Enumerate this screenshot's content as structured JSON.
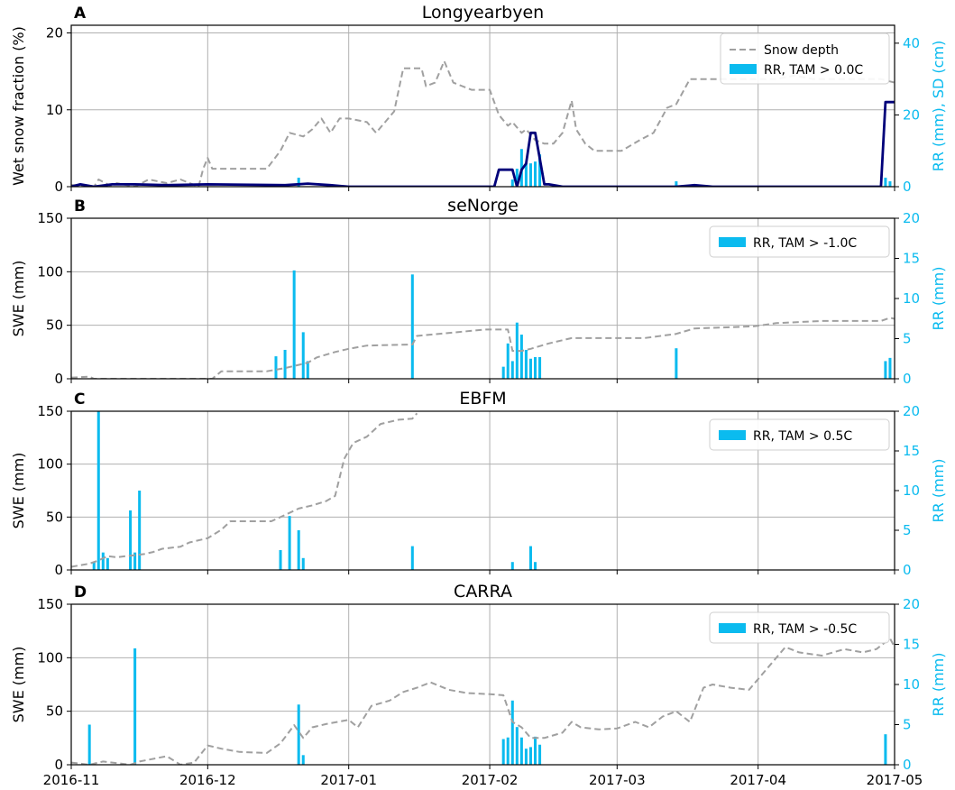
{
  "chart_data": [
    {
      "type": "line",
      "panel_label": "A",
      "title": "Longyearbyen",
      "ylabel": "Wet snow fraction (%)",
      "y2label": "RR (mm), SD (cm)",
      "ylim": [
        0,
        21
      ],
      "y2lim": [
        0,
        45
      ],
      "yticks": [
        0,
        10,
        20
      ],
      "y2ticks": [
        0,
        20,
        40
      ],
      "xlim": [
        "2016-11-01",
        "2017-05-01"
      ],
      "legend_position": "top-right",
      "legend": [
        "Snow depth",
        "RR, TAM > 0.0C"
      ],
      "series": [
        {
          "name": "Snow depth",
          "axis": "right",
          "style": "dashed",
          "color": "#a0a0a0",
          "x": [
            "2016-11-01",
            "2016-11-06",
            "2016-11-07",
            "2016-11-10",
            "2016-11-11",
            "2016-11-15",
            "2016-11-18",
            "2016-11-22",
            "2016-11-25",
            "2016-11-29",
            "2016-11-30",
            "2016-12-01",
            "2016-12-02",
            "2016-12-04",
            "2016-12-14",
            "2016-12-17",
            "2016-12-19",
            "2016-12-22",
            "2016-12-24",
            "2016-12-26",
            "2016-12-28",
            "2016-12-30",
            "2017-01-01",
            "2017-01-05",
            "2017-01-07",
            "2017-01-11",
            "2017-01-13",
            "2017-01-17",
            "2017-01-18",
            "2017-01-20",
            "2017-01-22",
            "2017-01-24",
            "2017-01-28",
            "2017-02-01",
            "2017-02-03",
            "2017-02-05",
            "2017-02-06",
            "2017-02-08",
            "2017-02-09",
            "2017-02-11",
            "2017-02-13",
            "2017-02-15",
            "2017-02-17",
            "2017-02-19",
            "2017-02-20",
            "2017-02-22",
            "2017-02-24",
            "2017-02-26",
            "2017-03-02",
            "2017-03-06",
            "2017-03-09",
            "2017-03-12",
            "2017-03-14",
            "2017-03-17",
            "2017-03-19",
            "2017-03-22",
            "2017-03-24",
            "2017-03-28",
            "2017-04-01",
            "2017-04-05",
            "2017-04-09",
            "2017-04-13",
            "2017-04-17",
            "2017-04-21",
            "2017-04-25",
            "2017-04-28",
            "2017-05-01"
          ],
          "values": [
            0.5,
            0,
            2,
            0,
            1,
            0,
            2,
            1,
            2,
            0,
            5,
            8,
            5,
            5,
            5,
            10,
            15,
            14,
            16,
            19,
            15,
            19,
            19,
            18,
            15,
            21,
            33,
            33,
            28,
            29,
            35,
            29,
            27,
            27,
            20,
            17,
            18,
            15,
            16,
            13,
            12,
            12,
            15,
            24,
            16,
            12,
            10,
            10,
            10,
            13,
            15,
            22,
            23,
            30,
            30,
            30,
            30,
            30,
            30,
            30,
            31,
            30,
            30,
            30,
            30,
            30,
            29
          ]
        },
        {
          "name": "Wet snow fraction",
          "axis": "left",
          "style": "solid",
          "color": "#00007a",
          "x": [
            "2016-11-01",
            "2016-11-03",
            "2016-11-06",
            "2016-11-10",
            "2016-11-15",
            "2016-11-22",
            "2016-12-01",
            "2016-12-18",
            "2016-12-23",
            "2016-12-28",
            "2017-01-01",
            "2017-01-31",
            "2017-02-02",
            "2017-02-03",
            "2017-02-06",
            "2017-02-07",
            "2017-02-08",
            "2017-02-09",
            "2017-02-10",
            "2017-02-11",
            "2017-02-13",
            "2017-02-14",
            "2017-02-15",
            "2017-02-17",
            "2017-02-19",
            "2017-03-14",
            "2017-03-18",
            "2017-03-22",
            "2017-04-28",
            "2017-04-29",
            "2017-04-30",
            "2017-05-01"
          ],
          "values": [
            0,
            0.3,
            0,
            0.3,
            0.3,
            0.2,
            0.3,
            0.2,
            0.4,
            0.2,
            0,
            0,
            0,
            2.2,
            2.2,
            0,
            2.2,
            3,
            7,
            7,
            0.3,
            0.3,
            0.2,
            0,
            0,
            0,
            0.2,
            0,
            0,
            11,
            11,
            11
          ]
        }
      ],
      "bars": {
        "name": "RR, TAM > 0.0C",
        "axis": "right",
        "color": "#0bbbef",
        "x": [
          "2016-12-21",
          "2017-02-06",
          "2017-02-07",
          "2017-02-08",
          "2017-02-09",
          "2017-02-10",
          "2017-02-11",
          "2017-02-12",
          "2017-03-14",
          "2017-04-29",
          "2017-04-30"
        ],
        "values": [
          2.5,
          2,
          5,
          10.5,
          6.5,
          6.5,
          7,
          9,
          1.5,
          2.5,
          1.5
        ]
      }
    },
    {
      "type": "bar",
      "panel_label": "B",
      "title": "seNorge",
      "ylabel": "SWE (mm)",
      "y2label": "RR (mm)",
      "ylim": [
        0,
        150
      ],
      "y2lim": [
        0,
        20
      ],
      "yticks": [
        0,
        50,
        100,
        150
      ],
      "y2ticks": [
        0,
        5,
        10,
        15,
        20
      ],
      "xlim": [
        "2016-11-01",
        "2017-05-01"
      ],
      "legend_position": "top-right",
      "legend": [
        "RR, TAM > -1.0C"
      ],
      "series": [
        {
          "name": "SWE",
          "axis": "left",
          "style": "dashed",
          "color": "#a0a0a0",
          "x": [
            "2016-11-01",
            "2016-11-05",
            "2016-11-06",
            "2016-12-02",
            "2016-12-04",
            "2016-12-14",
            "2016-12-18",
            "2016-12-21",
            "2016-12-23",
            "2016-12-25",
            "2016-12-29",
            "2017-01-01",
            "2017-01-05",
            "2017-01-15",
            "2017-01-16",
            "2017-01-31",
            "2017-02-05",
            "2017-02-06",
            "2017-02-08",
            "2017-02-10",
            "2017-02-14",
            "2017-02-19",
            "2017-03-07",
            "2017-03-14",
            "2017-03-18",
            "2017-03-31",
            "2017-04-05",
            "2017-04-15",
            "2017-04-28",
            "2017-04-30",
            "2017-05-01"
          ],
          "values": [
            1,
            2,
            0,
            0,
            7,
            7,
            10,
            13,
            15,
            20,
            25,
            28,
            31,
            32,
            40,
            46,
            46,
            26,
            26,
            28,
            33,
            38,
            38,
            42,
            47,
            49,
            52,
            54,
            54,
            57,
            56
          ]
        }
      ],
      "bars": {
        "name": "RR, TAM > -1.0C",
        "axis": "right",
        "color": "#0bbbef",
        "x": [
          "2016-12-16",
          "2016-12-18",
          "2016-12-20",
          "2016-12-22",
          "2016-12-23",
          "2017-01-15",
          "2017-02-04",
          "2017-02-05",
          "2017-02-06",
          "2017-02-07",
          "2017-02-08",
          "2017-02-09",
          "2017-02-10",
          "2017-02-11",
          "2017-02-12",
          "2017-03-14",
          "2017-04-29",
          "2017-04-30"
        ],
        "values": [
          2.8,
          3.6,
          13.5,
          5.8,
          2.2,
          13,
          1.5,
          4.4,
          2.2,
          7,
          5.5,
          3.6,
          2.5,
          2.7,
          2.7,
          3.8,
          2.2,
          2.6
        ]
      }
    },
    {
      "type": "bar",
      "panel_label": "C",
      "title": "EBFM",
      "ylabel": "SWE (mm)",
      "y2label": "RR (mm)",
      "ylim": [
        0,
        150
      ],
      "y2lim": [
        0,
        20
      ],
      "yticks": [
        0,
        50,
        100,
        150
      ],
      "y2ticks": [
        0,
        5,
        10,
        15,
        20
      ],
      "xlim": [
        "2016-11-01",
        "2017-05-01"
      ],
      "legend_position": "top-right",
      "legend": [
        "RR, TAM > 0.5C"
      ],
      "series": [
        {
          "name": "SWE",
          "axis": "left",
          "style": "dashed",
          "color": "#a0a0a0",
          "x": [
            "2016-11-01",
            "2016-11-05",
            "2016-11-07",
            "2016-11-09",
            "2016-11-11",
            "2016-11-13",
            "2016-11-15",
            "2016-11-17",
            "2016-11-19",
            "2016-11-21",
            "2016-11-25",
            "2016-11-27",
            "2016-12-01",
            "2016-12-04",
            "2016-12-06",
            "2016-12-10",
            "2016-12-15",
            "2016-12-18",
            "2016-12-21",
            "2016-12-24",
            "2016-12-27",
            "2016-12-29",
            "2016-12-31",
            "2017-01-02",
            "2017-01-05",
            "2017-01-08",
            "2017-01-12",
            "2017-01-15",
            "2017-01-16"
          ],
          "values": [
            3,
            6,
            9,
            13,
            12,
            13,
            14,
            15,
            17,
            20,
            22,
            26,
            30,
            38,
            46,
            46,
            46,
            52,
            58,
            61,
            65,
            70,
            105,
            120,
            126,
            138,
            142,
            143,
            148
          ]
        }
      ],
      "bars": {
        "name": "RR, TAM > 0.5C",
        "axis": "right",
        "color": "#0bbbef",
        "x": [
          "2016-11-06",
          "2016-11-07",
          "2016-11-08",
          "2016-11-09",
          "2016-11-14",
          "2016-11-15",
          "2016-11-16",
          "2016-12-17",
          "2016-12-19",
          "2016-12-21",
          "2016-12-22",
          "2017-01-15",
          "2017-02-06",
          "2017-02-10",
          "2017-02-11"
        ],
        "values": [
          1,
          20,
          2.2,
          1.5,
          7.5,
          2.2,
          10,
          2.5,
          6.8,
          5,
          1.5,
          3,
          1,
          3,
          1
        ]
      }
    },
    {
      "type": "bar",
      "panel_label": "D",
      "title": "CARRA",
      "ylabel": "SWE (mm)",
      "y2label": "RR (mm)",
      "ylim": [
        0,
        150
      ],
      "y2lim": [
        0,
        20
      ],
      "yticks": [
        0,
        50,
        100,
        150
      ],
      "y2ticks": [
        0,
        5,
        10,
        15,
        20
      ],
      "xtick_labels": [
        "2016-11",
        "2016-12",
        "2017-01",
        "2017-02",
        "2017-03",
        "2017-04",
        "2017-05"
      ],
      "xlim": [
        "2016-11-01",
        "2017-05-01"
      ],
      "legend_position": "top-right",
      "legend": [
        "RR, TAM > -0.5C"
      ],
      "series": [
        {
          "name": "SWE",
          "axis": "left",
          "style": "dashed",
          "color": "#a0a0a0",
          "x": [
            "2016-11-01",
            "2016-11-05",
            "2016-11-08",
            "2016-11-14",
            "2016-11-16",
            "2016-11-22",
            "2016-11-25",
            "2016-11-28",
            "2016-12-01",
            "2016-12-04",
            "2016-12-08",
            "2016-12-14",
            "2016-12-17",
            "2016-12-20",
            "2016-12-22",
            "2016-12-24",
            "2016-12-27",
            "2017-01-01",
            "2017-01-03",
            "2017-01-06",
            "2017-01-10",
            "2017-01-13",
            "2017-01-16",
            "2017-01-19",
            "2017-01-23",
            "2017-01-27",
            "2017-02-01",
            "2017-02-04",
            "2017-02-06",
            "2017-02-08",
            "2017-02-10",
            "2017-02-13",
            "2017-02-17",
            "2017-02-19",
            "2017-02-21",
            "2017-02-25",
            "2017-03-01",
            "2017-03-05",
            "2017-03-08",
            "2017-03-11",
            "2017-03-14",
            "2017-03-17",
            "2017-03-20",
            "2017-03-22",
            "2017-03-26",
            "2017-03-30",
            "2017-04-02",
            "2017-04-04",
            "2017-04-07",
            "2017-04-10",
            "2017-04-15",
            "2017-04-20",
            "2017-04-24",
            "2017-04-27",
            "2017-04-30",
            "2017-05-01"
          ],
          "values": [
            2,
            0,
            3,
            0,
            3,
            8,
            0,
            2,
            18,
            15,
            12,
            11,
            20,
            37,
            25,
            35,
            38,
            42,
            35,
            55,
            60,
            68,
            72,
            77,
            70,
            67,
            66,
            65,
            40,
            35,
            25,
            25,
            30,
            40,
            35,
            33,
            34,
            40,
            35,
            45,
            50,
            40,
            72,
            75,
            72,
            70,
            85,
            95,
            110,
            105,
            102,
            108,
            105,
            108,
            118,
            110
          ]
        }
      ],
      "bars": {
        "name": "RR, TAM > -0.5C",
        "axis": "right",
        "color": "#0bbbef",
        "x": [
          "2016-11-05",
          "2016-11-15",
          "2016-12-21",
          "2016-12-22",
          "2017-02-04",
          "2017-02-05",
          "2017-02-06",
          "2017-02-07",
          "2017-02-08",
          "2017-02-09",
          "2017-02-10",
          "2017-02-11",
          "2017-02-12",
          "2017-04-29"
        ],
        "values": [
          5,
          14.5,
          7.5,
          1.2,
          3.2,
          3.4,
          8,
          4.7,
          3.4,
          2,
          2.2,
          3.5,
          2.5,
          3.8
        ]
      }
    }
  ]
}
